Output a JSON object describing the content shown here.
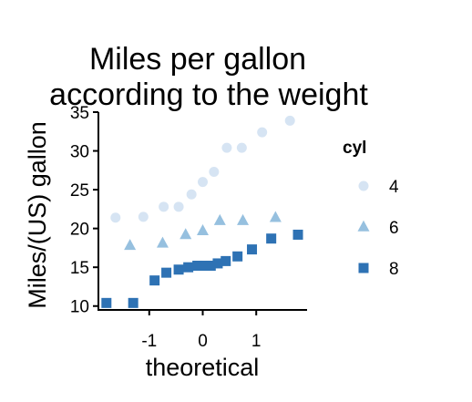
{
  "chart_data": {
    "type": "scatter",
    "title_lines": [
      "Miles per gallon",
      "according to the weight"
    ],
    "xlabel": "theoretical",
    "ylabel": "Miles/(US) gallon",
    "xlim": [
      -1.95,
      1.95
    ],
    "ylim": [
      9.5,
      35
    ],
    "xticks": [
      -1,
      0,
      1
    ],
    "xtick_labels": [
      "-1",
      "0",
      "1"
    ],
    "yticks": [
      10,
      15,
      20,
      25,
      30,
      35
    ],
    "ytick_labels": [
      "10",
      "15",
      "20",
      "25",
      "30",
      "35"
    ],
    "grid": false,
    "legend": {
      "title": "cyl",
      "position": "right"
    },
    "series": [
      {
        "name": "4",
        "shape": "circle",
        "color": "#d6e4f3",
        "points": [
          {
            "x": -1.63,
            "y": 21.4
          },
          {
            "x": -1.11,
            "y": 21.5
          },
          {
            "x": -0.73,
            "y": 22.8
          },
          {
            "x": -0.45,
            "y": 22.8
          },
          {
            "x": -0.21,
            "y": 24.4
          },
          {
            "x": 0.0,
            "y": 26.0
          },
          {
            "x": 0.21,
            "y": 27.3
          },
          {
            "x": 0.45,
            "y": 30.4
          },
          {
            "x": 0.73,
            "y": 30.4
          },
          {
            "x": 1.11,
            "y": 32.4
          },
          {
            "x": 1.63,
            "y": 33.9
          }
        ]
      },
      {
        "name": "6",
        "shape": "triangle",
        "color": "#96c0df",
        "points": [
          {
            "x": -1.36,
            "y": 17.8
          },
          {
            "x": -0.75,
            "y": 18.1
          },
          {
            "x": -0.32,
            "y": 19.2
          },
          {
            "x": 0.0,
            "y": 19.7
          },
          {
            "x": 0.32,
            "y": 21.0
          },
          {
            "x": 0.75,
            "y": 21.0
          },
          {
            "x": 1.36,
            "y": 21.4
          }
        ]
      },
      {
        "name": "8",
        "shape": "square",
        "color": "#2e72b4",
        "points": [
          {
            "x": -1.8,
            "y": 10.4
          },
          {
            "x": -1.3,
            "y": 10.4
          },
          {
            "x": -0.9,
            "y": 13.3
          },
          {
            "x": -0.68,
            "y": 14.3
          },
          {
            "x": -0.45,
            "y": 14.7
          },
          {
            "x": -0.27,
            "y": 15.0
          },
          {
            "x": -0.1,
            "y": 15.2
          },
          {
            "x": 0.03,
            "y": 15.2
          },
          {
            "x": 0.15,
            "y": 15.2
          },
          {
            "x": 0.28,
            "y": 15.5
          },
          {
            "x": 0.43,
            "y": 15.8
          },
          {
            "x": 0.65,
            "y": 16.4
          },
          {
            "x": 0.92,
            "y": 17.3
          },
          {
            "x": 1.28,
            "y": 18.7
          },
          {
            "x": 1.78,
            "y": 19.2
          }
        ]
      }
    ]
  }
}
